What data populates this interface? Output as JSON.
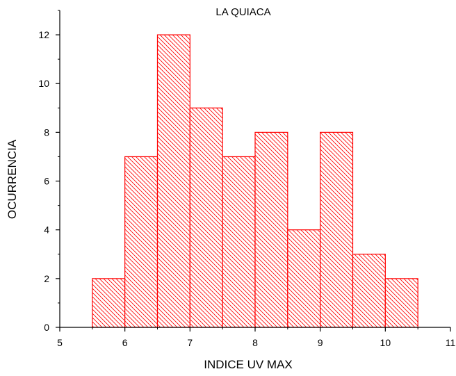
{
  "chart_data": {
    "type": "bar",
    "title": "LA QUIACA",
    "xlabel": "INDICE UV MAX",
    "ylabel": "OCURRENCIA",
    "xlim": [
      5,
      11
    ],
    "ylim": [
      0,
      13
    ],
    "xticks": [
      5,
      6,
      7,
      8,
      9,
      10,
      11
    ],
    "yticks": [
      0,
      2,
      4,
      6,
      8,
      10,
      12
    ],
    "grid": false,
    "bar_fill": "hatched",
    "bar_color": "#ff0000",
    "bins": [
      {
        "start": 5.5,
        "end": 6.0,
        "value": 2
      },
      {
        "start": 6.0,
        "end": 6.5,
        "value": 7
      },
      {
        "start": 6.5,
        "end": 7.0,
        "value": 12
      },
      {
        "start": 7.0,
        "end": 7.5,
        "value": 9
      },
      {
        "start": 7.5,
        "end": 8.0,
        "value": 7
      },
      {
        "start": 8.0,
        "end": 8.5,
        "value": 8
      },
      {
        "start": 8.5,
        "end": 9.0,
        "value": 4
      },
      {
        "start": 9.0,
        "end": 9.5,
        "value": 8
      },
      {
        "start": 9.5,
        "end": 10.0,
        "value": 3
      },
      {
        "start": 10.0,
        "end": 10.5,
        "value": 2
      }
    ]
  }
}
